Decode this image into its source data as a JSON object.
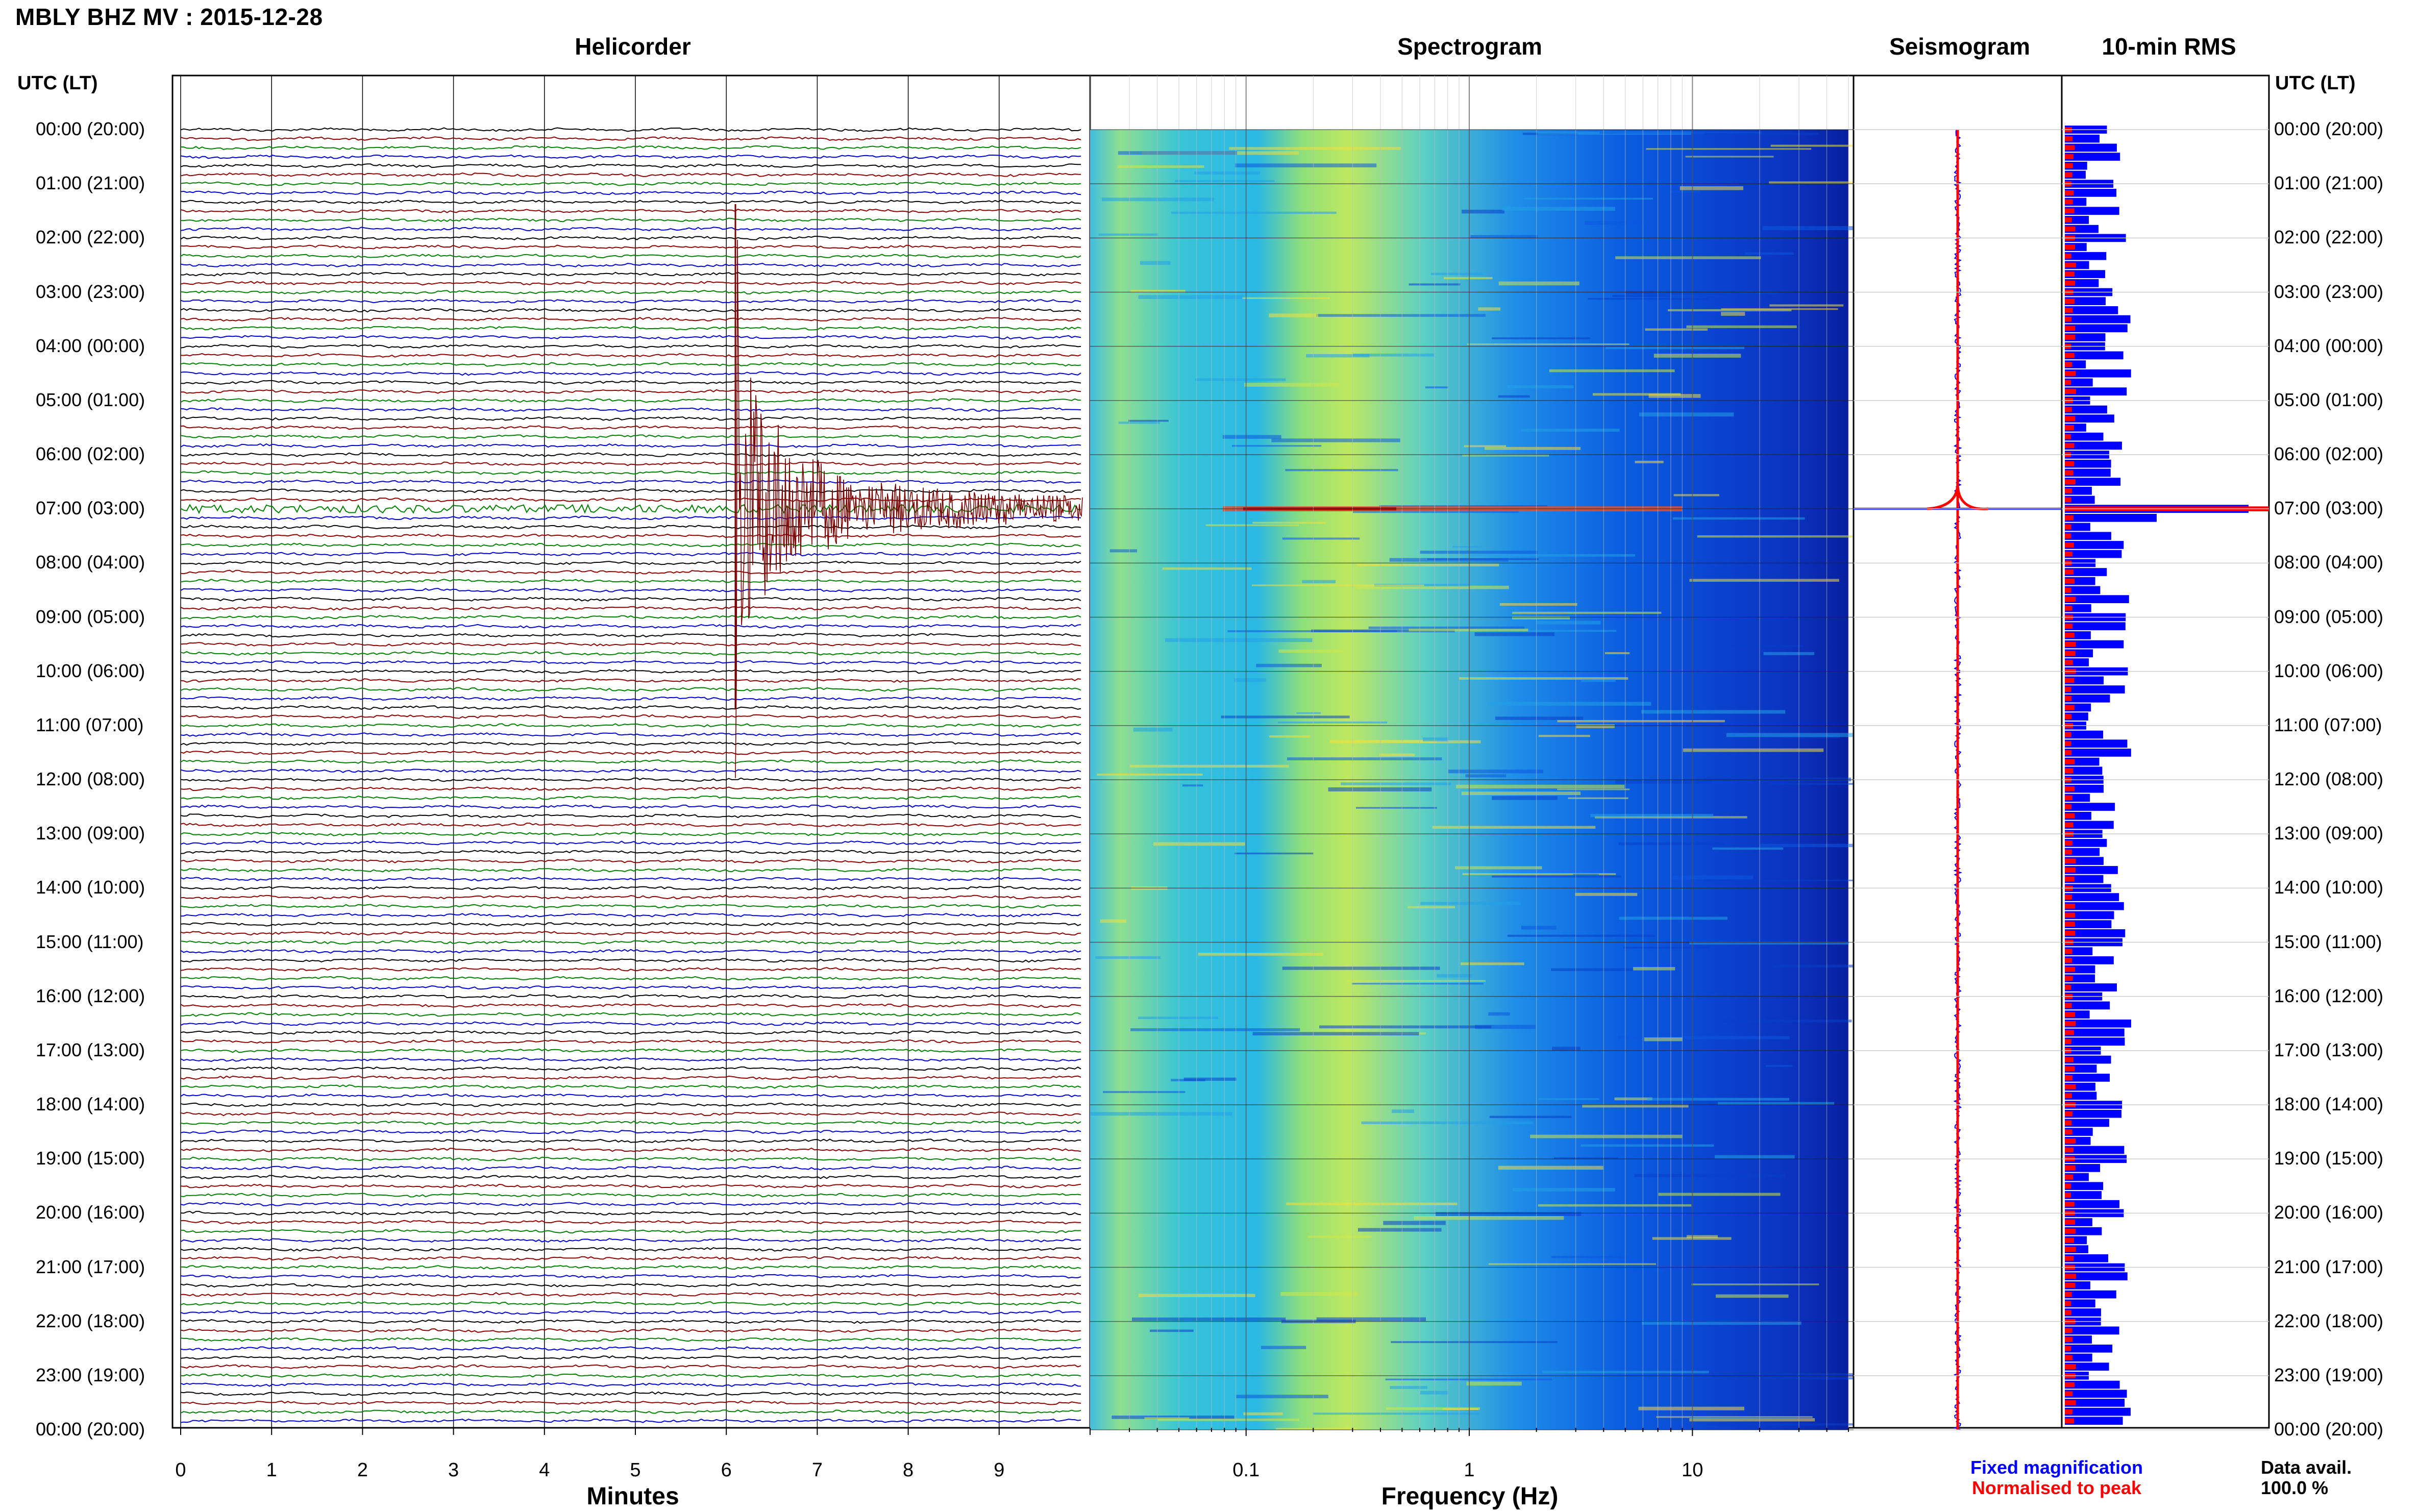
{
  "header": {
    "title": "MBLY BHZ MV : 2015-12-28"
  },
  "panels": {
    "helicorder": "Helicorder",
    "spectrogram": "Spectrogram",
    "seismogram": "Seismogram",
    "rms": "10-min RMS"
  },
  "axes": {
    "utc_label_left": "UTC (LT)",
    "utc_label_right": "UTC (LT)",
    "minutes_label": "Minutes",
    "frequency_label": "Frequency (Hz)"
  },
  "legend": {
    "fixed": "Fixed magnification",
    "normalised": "Normalised to peak",
    "fixed_color": "#0000ff",
    "normalised_color": "#ff0000",
    "data_avail_label": "Data avail.",
    "data_avail_value": "100.0 %"
  },
  "chart_data": [
    {
      "type": "line",
      "name": "helicorder",
      "title": "Helicorder",
      "xlabel": "Minutes",
      "ylabel": "UTC (LT)",
      "xlim": [
        0,
        10
      ],
      "x_ticks": [
        "0",
        "1",
        "2",
        "3",
        "4",
        "5",
        "6",
        "7",
        "8",
        "9"
      ],
      "y_ticks": [
        "00:00 (20:00)",
        "01:00 (21:00)",
        "02:00 (22:00)",
        "03:00 (23:00)",
        "04:00 (00:00)",
        "05:00 (01:00)",
        "06:00 (02:00)",
        "07:00 (03:00)",
        "08:00 (04:00)",
        "09:00 (05:00)",
        "10:00 (06:00)",
        "11:00 (07:00)",
        "12:00 (08:00)",
        "13:00 (09:00)",
        "14:00 (10:00)",
        "15:00 (11:00)",
        "16:00 (12:00)",
        "17:00 (13:00)",
        "18:00 (14:00)",
        "19:00 (15:00)",
        "20:00 (16:00)",
        "21:00 (17:00)",
        "22:00 (18:00)",
        "23:00 (19:00)",
        "00:00 (20:00)"
      ],
      "trace_colors": [
        "#000000",
        "#8b0000",
        "#008000",
        "#0000cd"
      ],
      "event": {
        "utc": "07:00",
        "minute": 6.1
      }
    },
    {
      "type": "heatmap",
      "name": "spectrogram",
      "title": "Spectrogram",
      "xlabel": "Frequency (Hz)",
      "x_scale": "log",
      "xlim": [
        0.02,
        50
      ],
      "x_ticks": [
        "0.1",
        "1",
        "10"
      ]
    },
    {
      "type": "line",
      "name": "seismogram",
      "title": "Seismogram"
    },
    {
      "type": "bar",
      "name": "rms",
      "title": "10-min RMS",
      "series": [
        {
          "name": "Fixed magnification",
          "color": "#0000ff"
        },
        {
          "name": "Normalised to peak",
          "color": "#ff0000"
        }
      ]
    }
  ]
}
